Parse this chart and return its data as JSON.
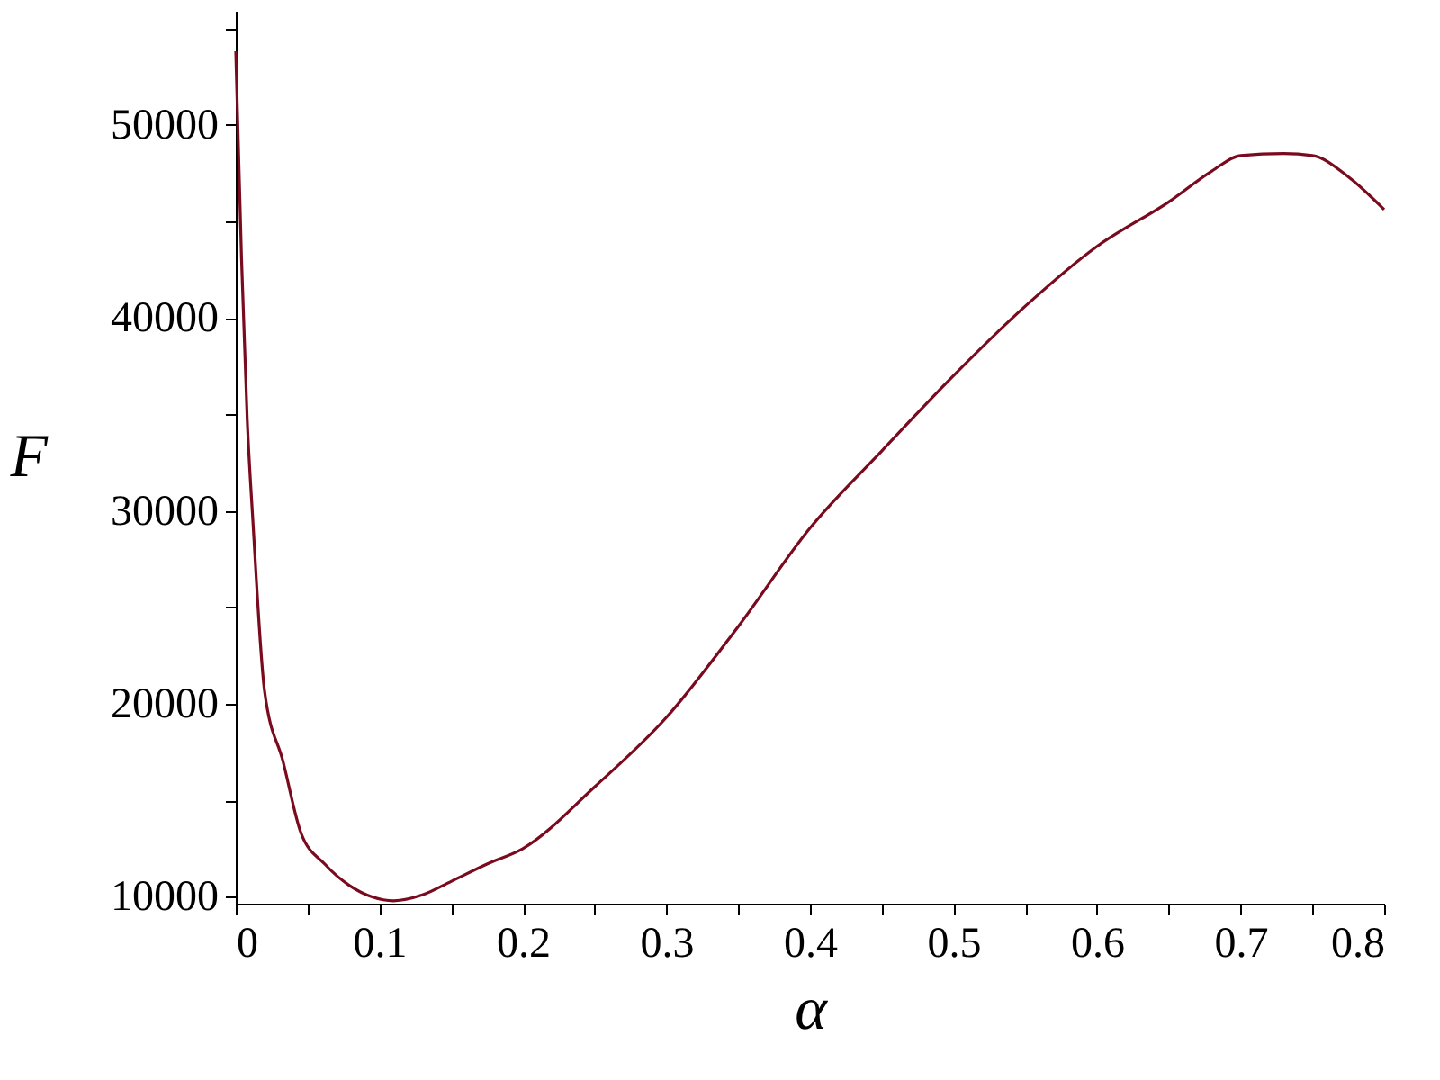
{
  "chart_data": {
    "type": "line",
    "xlabel": "α",
    "ylabel": "F",
    "x": [
      0,
      0.004,
      0.008,
      0.012,
      0.02,
      0.033,
      0.0455,
      0.062,
      0.079,
      0.095,
      0.11,
      0.13,
      0.15,
      0.175,
      0.2,
      0.25,
      0.3,
      0.35,
      0.4,
      0.45,
      0.5,
      0.55,
      0.6,
      0.65,
      0.68,
      0.7,
      0.73,
      0.75,
      0.775,
      0.8
    ],
    "series": [
      {
        "color": "#7a0a1e",
        "values": [
          53800,
          43100,
          34700,
          29400,
          20700,
          17000,
          13300,
          11700,
          10600,
          10000,
          9800,
          10100,
          10800,
          11700,
          12500,
          15700,
          19300,
          24000,
          29100,
          33100,
          37000,
          40600,
          43700,
          46000,
          47600,
          48400,
          48500,
          48400,
          47300,
          45600
        ]
      }
    ],
    "xlim": [
      0,
      0.8
    ],
    "ylim": [
      9650,
      55900
    ],
    "xticks": [
      0,
      {
        "value": 0.05,
        "label": null
      },
      0.1,
      {
        "value": 0.15,
        "label": null
      },
      0.2,
      {
        "value": 0.25,
        "label": null
      },
      0.3,
      {
        "value": 0.35,
        "label": null
      },
      0.4,
      {
        "value": 0.45,
        "label": null
      },
      0.5,
      {
        "value": 0.55,
        "label": null
      },
      0.6,
      {
        "value": 0.65,
        "label": null
      },
      0.7,
      {
        "value": 0.75,
        "label": null
      },
      0.8
    ],
    "yticks": [
      10000,
      {
        "value": 15000,
        "label": null
      },
      20000,
      {
        "value": 25000,
        "label": null
      },
      30000,
      {
        "value": 35000,
        "label": null
      },
      40000,
      {
        "value": 45000,
        "label": null
      },
      50000,
      {
        "value": 55000,
        "label": null
      }
    ],
    "grid": false,
    "legend": false,
    "marker": "none",
    "line_style": "solid"
  }
}
